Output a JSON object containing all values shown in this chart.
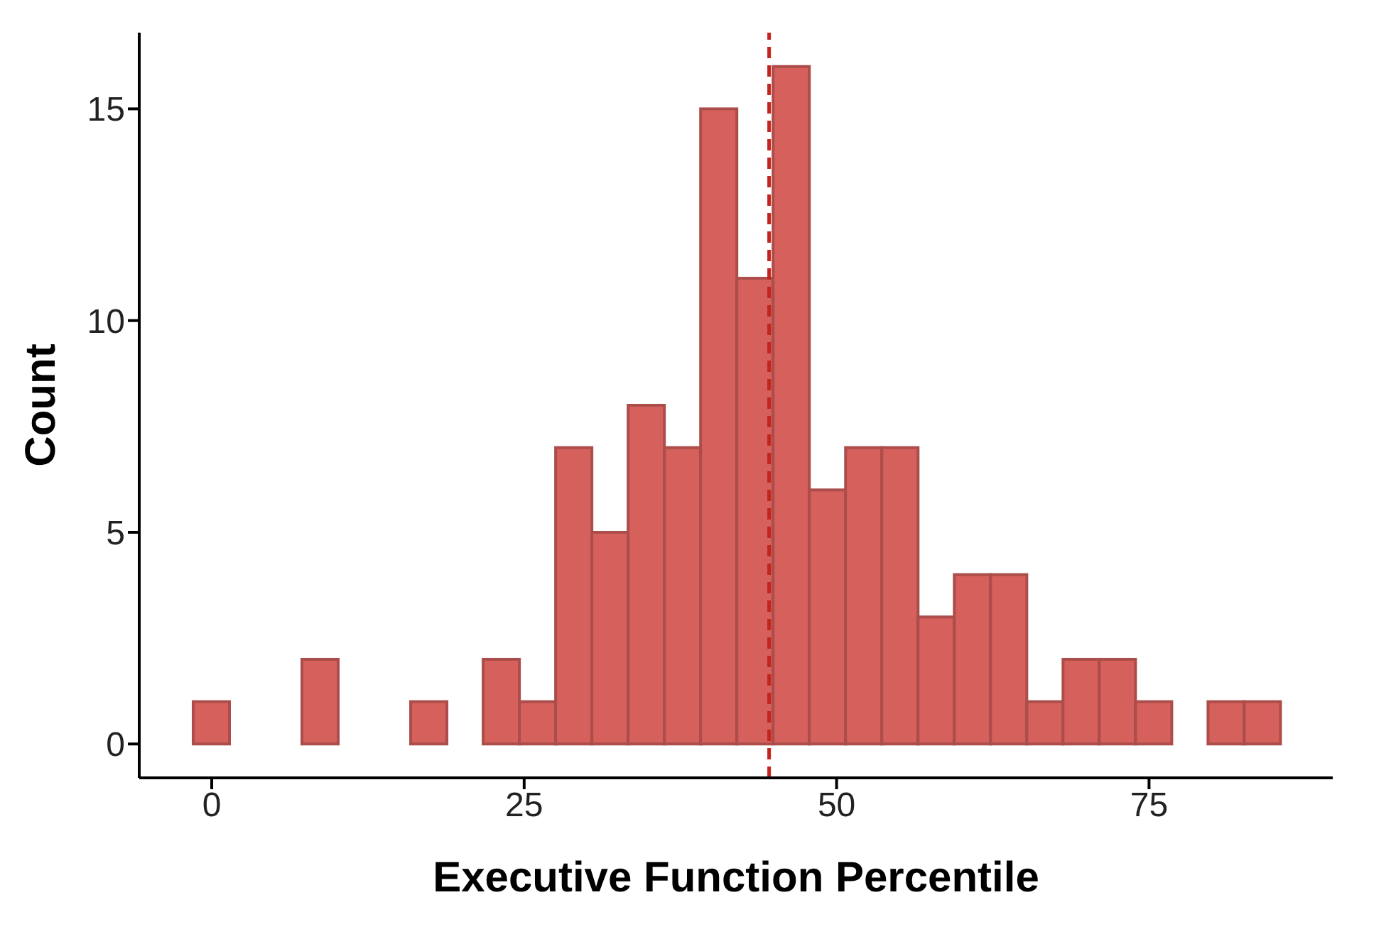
{
  "chart_data": {
    "type": "histogram",
    "xlabel": "Executive Function Percentile",
    "ylabel": "Count",
    "bins": [
      -1.45,
      1.45,
      4.35,
      7.25,
      10.15,
      13.05,
      15.95,
      18.85,
      21.75,
      24.65,
      27.55,
      30.45,
      33.35,
      36.25,
      39.15,
      42.05,
      44.95,
      47.85,
      50.75,
      53.65,
      56.55,
      59.45,
      62.35,
      65.25,
      68.15,
      71.05,
      73.95,
      76.85,
      79.75,
      82.65,
      85.55
    ],
    "values": [
      1,
      0,
      0,
      2,
      0,
      0,
      1,
      0,
      2,
      1,
      7,
      5,
      8,
      7,
      15,
      11,
      16,
      6,
      7,
      7,
      3,
      4,
      4,
      1,
      2,
      2,
      1,
      0,
      1,
      1
    ],
    "color": "#d6605c",
    "xlim": [
      -5.8,
      89.7
    ],
    "xticks": [
      0,
      25,
      50,
      75
    ],
    "ylim": [
      -0.8,
      16.8
    ],
    "yticks": [
      0,
      5,
      10,
      15
    ],
    "ref_lines": [
      {
        "axis": "x",
        "value": 44.6,
        "color": "#c4241c",
        "line_style": "dashed"
      }
    ]
  }
}
